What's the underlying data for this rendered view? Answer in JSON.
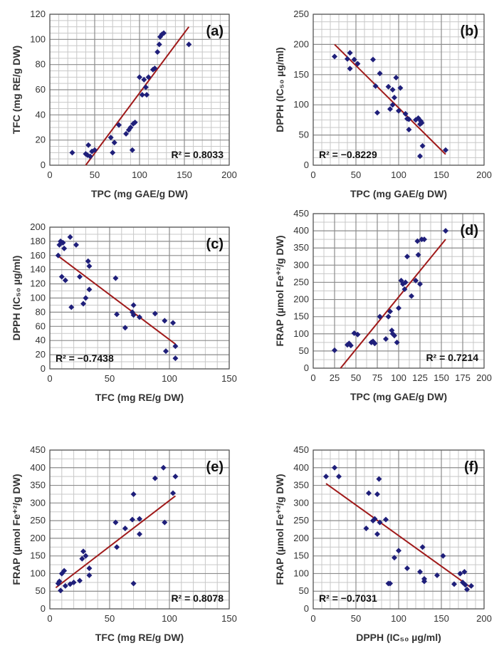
{
  "chart_data": [
    {
      "id": "a",
      "type": "scatter",
      "annotation": "(a)",
      "xlabel": "TPC (mg GAE/g DW)",
      "ylabel": "TFC (mg RE/g DW)",
      "xlim": [
        0,
        200
      ],
      "ylim": [
        0,
        120
      ],
      "xticks": [
        0,
        50,
        100,
        150,
        200
      ],
      "yticks": [
        0,
        20,
        40,
        60,
        80,
        100,
        120
      ],
      "r2_label": "R² = 0.8033",
      "r2_position": "bottom-right",
      "trendline": [
        [
          40,
          0
        ],
        [
          155,
          110
        ]
      ],
      "points": [
        [
          25,
          10
        ],
        [
          40,
          9
        ],
        [
          42,
          8
        ],
        [
          43,
          16
        ],
        [
          45,
          7
        ],
        [
          47,
          11
        ],
        [
          50,
          12
        ],
        [
          68,
          22
        ],
        [
          70,
          10
        ],
        [
          72,
          18
        ],
        [
          77,
          32
        ],
        [
          85,
          25
        ],
        [
          88,
          28
        ],
        [
          90,
          30
        ],
        [
          92,
          12
        ],
        [
          93,
          33
        ],
        [
          95,
          34
        ],
        [
          100,
          70
        ],
        [
          103,
          56
        ],
        [
          105,
          68
        ],
        [
          107,
          62
        ],
        [
          108,
          56
        ],
        [
          110,
          70
        ],
        [
          115,
          76
        ],
        [
          117,
          77
        ],
        [
          120,
          90
        ],
        [
          122,
          96
        ],
        [
          123,
          102
        ],
        [
          125,
          104
        ],
        [
          127,
          105
        ],
        [
          155,
          96
        ]
      ],
      "grid": true,
      "color": "#1f1f7a",
      "line_color": "#a01a1a"
    },
    {
      "id": "b",
      "type": "scatter",
      "annotation": "(b)",
      "xlabel": "TPC (mg GAE/g DW)",
      "ylabel": "DPPH (IC₅₀ µg/ml)",
      "xlim": [
        0,
        200
      ],
      "ylim": [
        0,
        250
      ],
      "xticks": [
        0,
        50,
        100,
        150,
        200
      ],
      "yticks": [
        0,
        50,
        100,
        150,
        200,
        250
      ],
      "r2_label": "R² = −0.8229",
      "r2_position": "bottom-left",
      "trendline": [
        [
          25,
          200
        ],
        [
          155,
          18
        ]
      ],
      "points": [
        [
          25,
          180
        ],
        [
          40,
          176
        ],
        [
          43,
          186
        ],
        [
          43,
          160
        ],
        [
          48,
          175
        ],
        [
          52,
          168
        ],
        [
          70,
          175
        ],
        [
          73,
          131
        ],
        [
          75,
          87
        ],
        [
          78,
          152
        ],
        [
          88,
          130
        ],
        [
          90,
          93
        ],
        [
          93,
          100
        ],
        [
          93,
          125
        ],
        [
          95,
          112
        ],
        [
          97,
          145
        ],
        [
          100,
          90
        ],
        [
          102,
          128
        ],
        [
          108,
          85
        ],
        [
          110,
          77
        ],
        [
          112,
          59
        ],
        [
          112,
          76
        ],
        [
          120,
          75
        ],
        [
          123,
          78
        ],
        [
          125,
          68
        ],
        [
          126,
          73
        ],
        [
          127,
          70
        ],
        [
          125,
          15
        ],
        [
          128,
          32
        ],
        [
          155,
          25
        ]
      ],
      "grid": true,
      "color": "#1f1f7a",
      "line_color": "#a01a1a"
    },
    {
      "id": "c",
      "type": "scatter",
      "annotation": "(c)",
      "xlabel": "TFC (mg RE/g DW)",
      "ylabel": "DPPH (IC₅₀ µg/ml)",
      "xlim": [
        0,
        150
      ],
      "ylim": [
        0,
        200
      ],
      "xticks": [
        0,
        50,
        100,
        150
      ],
      "yticks": [
        0,
        20,
        40,
        60,
        80,
        100,
        120,
        140,
        160,
        180,
        200
      ],
      "r2_label": "R² = −0.7438",
      "r2_position": "bottom-left",
      "trendline": [
        [
          8,
          158
        ],
        [
          105,
          35
        ]
      ],
      "points": [
        [
          7,
          160
        ],
        [
          8,
          175
        ],
        [
          9,
          180
        ],
        [
          10,
          130
        ],
        [
          11,
          178
        ],
        [
          12,
          170
        ],
        [
          13,
          125
        ],
        [
          17,
          186
        ],
        [
          18,
          87
        ],
        [
          22,
          175
        ],
        [
          25,
          130
        ],
        [
          28,
          92
        ],
        [
          30,
          100
        ],
        [
          32,
          152
        ],
        [
          33,
          145
        ],
        [
          33,
          112
        ],
        [
          55,
          128
        ],
        [
          56,
          77
        ],
        [
          63,
          58
        ],
        [
          69,
          80
        ],
        [
          70,
          90
        ],
        [
          70,
          76
        ],
        [
          75,
          73
        ],
        [
          88,
          78
        ],
        [
          96,
          68
        ],
        [
          97,
          25
        ],
        [
          103,
          65
        ],
        [
          105,
          32
        ],
        [
          105,
          15
        ]
      ],
      "grid": true,
      "color": "#1f1f7a",
      "line_color": "#a01a1a"
    },
    {
      "id": "d",
      "type": "scatter",
      "annotation": "(d)",
      "xlabel": "TPC (mg GAE/g DW)",
      "ylabel": "FRAP (µmol Fe⁺²/g DW)",
      "xlim": [
        0,
        200
      ],
      "ylim": [
        0,
        450
      ],
      "xticks": [
        0,
        25,
        50,
        75,
        100,
        125,
        150,
        175,
        200
      ],
      "yticks": [
        0,
        50,
        100,
        150,
        200,
        250,
        300,
        350,
        400,
        450
      ],
      "r2_label": "R² = 0.7214",
      "r2_position": "bottom-right",
      "trendline": [
        [
          32,
          0
        ],
        [
          155,
          375
        ]
      ],
      "points": [
        [
          25,
          52
        ],
        [
          40,
          68
        ],
        [
          42,
          72
        ],
        [
          44,
          66
        ],
        [
          48,
          102
        ],
        [
          52,
          98
        ],
        [
          68,
          75
        ],
        [
          70,
          78
        ],
        [
          72,
          72
        ],
        [
          78,
          150
        ],
        [
          85,
          85
        ],
        [
          88,
          150
        ],
        [
          90,
          165
        ],
        [
          92,
          110
        ],
        [
          93,
          100
        ],
        [
          95,
          95
        ],
        [
          98,
          75
        ],
        [
          100,
          175
        ],
        [
          103,
          255
        ],
        [
          105,
          245
        ],
        [
          107,
          230
        ],
        [
          108,
          250
        ],
        [
          110,
          325
        ],
        [
          115,
          210
        ],
        [
          120,
          255
        ],
        [
          122,
          370
        ],
        [
          123,
          330
        ],
        [
          125,
          245
        ],
        [
          127,
          375
        ],
        [
          130,
          375
        ],
        [
          155,
          400
        ]
      ],
      "grid": true,
      "color": "#1f1f7a",
      "line_color": "#a01a1a"
    },
    {
      "id": "e",
      "type": "scatter",
      "annotation": "(e)",
      "xlabel": "TFC (mg RE/g DW)",
      "ylabel": "FRAP (µmol Fe⁺²/g DW)",
      "xlim": [
        0,
        150
      ],
      "ylim": [
        0,
        450
      ],
      "xticks": [
        0,
        50,
        100,
        150
      ],
      "yticks": [
        0,
        50,
        100,
        150,
        200,
        250,
        300,
        350,
        400,
        450
      ],
      "r2_label": "R² = 0.8078",
      "r2_position": "bottom-right",
      "trendline": [
        [
          5,
          60
        ],
        [
          105,
          320
        ]
      ],
      "points": [
        [
          7,
          72
        ],
        [
          8,
          78
        ],
        [
          9,
          52
        ],
        [
          10,
          100
        ],
        [
          12,
          108
        ],
        [
          13,
          65
        ],
        [
          17,
          70
        ],
        [
          20,
          75
        ],
        [
          25,
          80
        ],
        [
          27,
          142
        ],
        [
          28,
          163
        ],
        [
          30,
          150
        ],
        [
          33,
          115
        ],
        [
          33,
          95
        ],
        [
          55,
          245
        ],
        [
          56,
          175
        ],
        [
          63,
          228
        ],
        [
          69,
          253
        ],
        [
          70,
          325
        ],
        [
          70,
          72
        ],
        [
          75,
          255
        ],
        [
          75,
          212
        ],
        [
          88,
          370
        ],
        [
          95,
          400
        ],
        [
          96,
          245
        ],
        [
          103,
          328
        ],
        [
          105,
          375
        ]
      ],
      "grid": true,
      "color": "#1f1f7a",
      "line_color": "#a01a1a"
    },
    {
      "id": "f",
      "type": "scatter",
      "annotation": "(f)",
      "xlabel": "DPPH (IC₅₀ µg/ml)",
      "ylabel": "FRAP (µmol Fe⁺²/g DW)",
      "xlim": [
        0,
        200
      ],
      "ylim": [
        0,
        450
      ],
      "xticks": [
        0,
        50,
        100,
        150,
        200
      ],
      "yticks": [
        0,
        50,
        100,
        150,
        200,
        250,
        300,
        350,
        400,
        450
      ],
      "r2_label": "R² = −0.7031",
      "r2_position": "bottom-left",
      "trendline": [
        [
          15,
          355
        ],
        [
          185,
          60
        ]
      ],
      "points": [
        [
          15,
          375
        ],
        [
          25,
          400
        ],
        [
          30,
          375
        ],
        [
          62,
          228
        ],
        [
          65,
          328
        ],
        [
          70,
          250
        ],
        [
          72,
          255
        ],
        [
          75,
          212
        ],
        [
          75,
          325
        ],
        [
          77,
          368
        ],
        [
          78,
          245
        ],
        [
          85,
          253
        ],
        [
          88,
          72
        ],
        [
          90,
          72
        ],
        [
          95,
          145
        ],
        [
          100,
          165
        ],
        [
          110,
          115
        ],
        [
          125,
          105
        ],
        [
          128,
          175
        ],
        [
          130,
          85
        ],
        [
          130,
          78
        ],
        [
          145,
          95
        ],
        [
          152,
          150
        ],
        [
          165,
          70
        ],
        [
          172,
          100
        ],
        [
          175,
          75
        ],
        [
          177,
          105
        ],
        [
          178,
          68
        ],
        [
          180,
          55
        ],
        [
          185,
          65
        ]
      ],
      "grid": true,
      "color": "#1f1f7a",
      "line_color": "#a01a1a"
    }
  ]
}
